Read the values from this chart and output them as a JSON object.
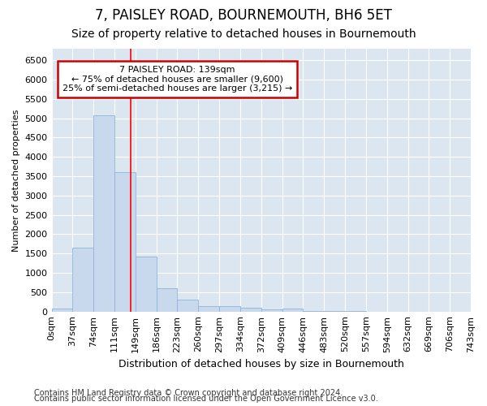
{
  "title1": "7, PAISLEY ROAD, BOURNEMOUTH, BH6 5ET",
  "title2": "Size of property relative to detached houses in Bournemouth",
  "xlabel": "Distribution of detached houses by size in Bournemouth",
  "ylabel": "Number of detached properties",
  "bar_values": [
    70,
    1650,
    5080,
    3600,
    1430,
    610,
    300,
    150,
    130,
    100,
    50,
    70,
    20,
    10,
    5,
    3,
    2,
    1,
    0,
    0
  ],
  "bar_labels": [
    "0sqm",
    "37sqm",
    "74sqm",
    "111sqm",
    "149sqm",
    "186sqm",
    "223sqm",
    "260sqm",
    "297sqm",
    "334sqm",
    "372sqm",
    "409sqm",
    "446sqm",
    "483sqm",
    "520sqm",
    "557sqm",
    "594sqm",
    "632sqm",
    "669sqm",
    "706sqm",
    "743sqm"
  ],
  "bar_color": "#c8d9ee",
  "bar_edgecolor": "#8db4d8",
  "bar_width": 1.0,
  "ylim": [
    0,
    6800
  ],
  "yticks": [
    0,
    500,
    1000,
    1500,
    2000,
    2500,
    3000,
    3500,
    4000,
    4500,
    5000,
    5500,
    6000,
    6500
  ],
  "red_line_x": 3.76,
  "annotation_title": "7 PAISLEY ROAD: 139sqm",
  "annotation_line1": "← 75% of detached houses are smaller (9,600)",
  "annotation_line2": "25% of semi-detached houses are larger (3,215) →",
  "annotation_box_facecolor": "#ffffff",
  "annotation_box_edgecolor": "#cc0000",
  "footer1": "Contains HM Land Registry data © Crown copyright and database right 2024.",
  "footer2": "Contains public sector information licensed under the Open Government Licence v3.0.",
  "fig_bg_color": "#ffffff",
  "plot_bg_color": "#dce6f0",
  "grid_color": "#ffffff",
  "title1_fontsize": 12,
  "title2_fontsize": 10,
  "xlabel_fontsize": 9,
  "ylabel_fontsize": 8,
  "tick_fontsize": 8,
  "annot_fontsize": 8,
  "footer_fontsize": 7
}
